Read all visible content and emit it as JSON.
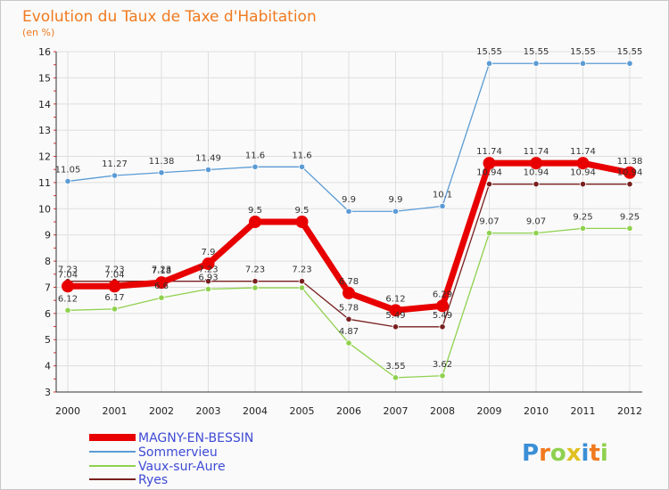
{
  "chart_data": {
    "type": "line",
    "title": "Evolution du Taux de Taxe d'Habitation",
    "subtitle": "(en %)",
    "x": [
      "2000",
      "2001",
      "2002",
      "2003",
      "2004",
      "2005",
      "2006",
      "2007",
      "2008",
      "2009",
      "2010",
      "2011",
      "2012"
    ],
    "ylim": [
      3,
      16
    ],
    "yticks": [
      3,
      4,
      5,
      6,
      7,
      8,
      9,
      10,
      11,
      12,
      13,
      14,
      15,
      16
    ],
    "grid": true,
    "legend_position": "bottom-left",
    "series": [
      {
        "name": "MAGNY-EN-BESSIN",
        "color": "#e80000",
        "values": [
          7.04,
          7.04,
          7.18,
          7.9,
          9.5,
          9.5,
          6.78,
          6.12,
          6.29,
          11.74,
          11.74,
          11.74,
          11.38
        ]
      },
      {
        "name": "Sommervieu",
        "color": "#5b9bd5",
        "values": [
          11.05,
          11.27,
          11.38,
          11.49,
          11.6,
          11.6,
          9.9,
          9.9,
          10.1,
          15.55,
          15.55,
          15.55,
          15.55
        ]
      },
      {
        "name": "Vaux-sur-Aure",
        "color": "#8fd14f",
        "values": [
          6.12,
          6.17,
          6.6,
          6.93,
          6.98,
          6.98,
          4.87,
          3.55,
          3.62,
          9.07,
          9.07,
          9.25,
          9.25
        ]
      },
      {
        "name": "Ryes",
        "color": "#7a1f1f",
        "values": [
          7.23,
          7.23,
          7.23,
          7.23,
          7.23,
          7.23,
          5.78,
          5.49,
          5.49,
          10.94,
          10.94,
          10.94,
          10.94
        ]
      }
    ],
    "data_labels": {
      "MAGNY-EN-BESSIN": [
        "7.04",
        "7.04",
        "7.18",
        "7.9",
        "9.5",
        "9.5",
        "6.78",
        "6.12",
        "6.29",
        "11.74",
        "11.74",
        "11.74",
        "11.38"
      ],
      "Sommervieu": [
        "11.05",
        "11.27",
        "11.38",
        "11.49",
        "11.6",
        "11.6",
        "9.9",
        "9.9",
        "10.1",
        "15.55",
        "15.55",
        "15.55",
        "15.55"
      ],
      "Vaux-sur-Aure": [
        "6.12",
        "6.17",
        "6.6",
        "6.93",
        "",
        "",
        "4.87",
        "3.55",
        "3.62",
        "9.07",
        "9.07",
        "9.25",
        "9.25"
      ],
      "Ryes": [
        "7.23",
        "7.23",
        "7.23",
        "7.23",
        "7.23",
        "7.23",
        "5.78",
        "5.49",
        "5.49",
        "10.94",
        "10.94",
        "10.94",
        "10.94"
      ]
    }
  },
  "logo": {
    "text": "Proxiti"
  }
}
